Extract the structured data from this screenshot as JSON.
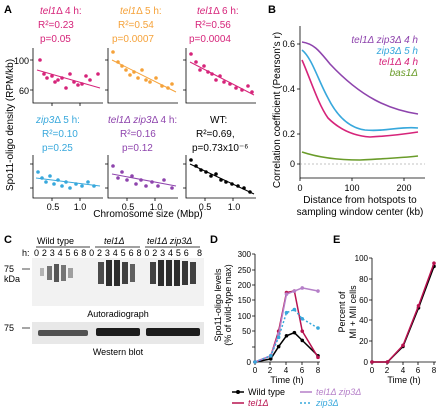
{
  "colors": {
    "magenta": "#d6247a",
    "orange": "#f5a23a",
    "cyan": "#38a8dc",
    "purple": "#8e44ad",
    "green": "#6a9c2a",
    "black": "#000000",
    "red": "#b8124f",
    "lightpurple": "#b57fc8"
  },
  "panels": {
    "A": {
      "letter": "A",
      "ylabel": "Spo11-oligo density (RPM/kb)",
      "xlabel": "Chromosome size (Mbp)",
      "yticks": [
        "100",
        "60"
      ],
      "xticks": [
        "0.5",
        "1.0"
      ],
      "subplots": [
        {
          "name": "tel1",
          "suffix": "Δ 4 h:",
          "r2": "R²=0.23",
          "p": "p=0.05",
          "color": "#d6247a"
        },
        {
          "name": "tel1",
          "suffix": "Δ 5 h:",
          "r2": "R²=0.54",
          "p": "p=0.0007",
          "color": "#f5a23a"
        },
        {
          "name": "tel1",
          "suffix": "Δ 6 h:",
          "r2": "R²=0.56",
          "p": "p=0.0004",
          "color": "#d6247a"
        },
        {
          "name": "zip3",
          "suffix": "Δ 5 h:",
          "r2": "R²=0.10",
          "p": "p=0.25",
          "color": "#38a8dc"
        },
        {
          "name": "tel1Δ zip3",
          "suffix": "Δ 4 h:",
          "r2": "R²=0.16",
          "p": "p=0.12",
          "color": "#8e44ad"
        },
        {
          "name": "WT:",
          "suffix": "",
          "r2": "R²=0.69,",
          "p": "p=0.73x10⁻⁶",
          "color": "#000000"
        }
      ]
    },
    "B": {
      "letter": "B",
      "ylabel": "Correlation coefficient (Pearson's r)",
      "xlabel1": "Distance from hotspots to",
      "xlabel2": "sampling window center (kb)",
      "yticks": [
        "0.6",
        "0.4",
        "0.2",
        "0"
      ],
      "xticks": [
        "0",
        "100",
        "200"
      ],
      "legend": [
        {
          "label": "tel1Δ zip3Δ 4 h",
          "color": "#8e44ad"
        },
        {
          "label": "zip3Δ 5 h",
          "color": "#38a8dc"
        },
        {
          "label": "tel1Δ 4 h",
          "color": "#d6247a"
        },
        {
          "label": "bas1Δ",
          "color": "#6a9c2a"
        }
      ]
    },
    "C": {
      "letter": "C",
      "groups": [
        "Wild type",
        "tel1Δ",
        "tel1Δ zip3Δ"
      ],
      "h_label": "h:",
      "lanes": "02345680234568023456 8",
      "markers": [
        "75",
        "kDa",
        "75"
      ],
      "autorad": "Autoradiograph",
      "western": "Western blot"
    },
    "D": {
      "letter": "D",
      "ylabel1": "Spo11-oligo levels",
      "ylabel2": "(% of wild-type max)",
      "xlabel": "Time (h)",
      "yticks": [
        "300",
        "250",
        "200",
        "150",
        "100",
        "50",
        "0"
      ],
      "xticks": [
        "0",
        "2",
        "4",
        "6",
        "8"
      ],
      "legend": [
        {
          "label": "Wild type",
          "color": "#000000"
        },
        {
          "label": "tel1Δ",
          "color": "#b8124f"
        },
        {
          "label": "tel1Δ zip3Δ",
          "color": "#b57fc8"
        },
        {
          "label": "zip3Δ",
          "color": "#38a8dc"
        }
      ]
    },
    "E": {
      "letter": "E",
      "ylabel1": "Percent of",
      "ylabel2": "MI + MII cells",
      "xlabel": "Time (h)",
      "yticks": [
        "100",
        "80",
        "60",
        "40",
        "20",
        "0"
      ],
      "xticks": [
        "0",
        "2",
        "4",
        "6",
        "8"
      ]
    }
  },
  "chart_data": [
    {
      "panel": "D",
      "type": "line",
      "x": [
        0,
        2,
        3,
        4,
        5,
        6,
        8
      ],
      "xlabel": "Time (h)",
      "ylabel": "Spo11-oligo levels (% of wild-type max)",
      "ylim": [
        0,
        350
      ],
      "series": [
        {
          "name": "Wild type",
          "values": [
            0,
            10,
            50,
            85,
            95,
            70,
            20
          ]
        },
        {
          "name": "tel1Δ",
          "values": [
            0,
            20,
            100,
            225,
            230,
            100,
            15
          ]
        },
        {
          "name": "tel1Δ zip3Δ",
          "values": [
            0,
            20,
            90,
            220,
            230,
            240,
            230
          ]
        },
        {
          "name": "zip3Δ",
          "values": [
            0,
            20,
            80,
            160,
            170,
            140,
            110
          ]
        }
      ]
    },
    {
      "panel": "E",
      "type": "line",
      "x": [
        0,
        2,
        4,
        6,
        8
      ],
      "xlabel": "Time (h)",
      "ylabel": "Percent of MI + MII cells",
      "ylim": [
        0,
        100
      ],
      "series": [
        {
          "name": "Wild type",
          "values": [
            0,
            0,
            15,
            52,
            92
          ]
        },
        {
          "name": "tel1Δ",
          "values": [
            0,
            0,
            16,
            54,
            95
          ]
        }
      ]
    },
    {
      "panel": "B",
      "type": "line",
      "xlabel": "Distance from hotspots to sampling window center (kb)",
      "ylabel": "Correlation coefficient (Pearson's r)",
      "series": [
        {
          "name": "tel1Δ zip3Δ 4 h",
          "values": [
            0.57,
            0.52,
            0.45,
            0.38,
            0.32,
            0.27,
            0.23
          ]
        },
        {
          "name": "zip3Δ 5 h",
          "values": [
            0.52,
            0.42,
            0.3,
            0.22,
            0.17,
            0.15,
            0.15
          ]
        },
        {
          "name": "tel1Δ 4 h",
          "values": [
            0.47,
            0.33,
            0.2,
            0.14,
            0.12,
            0.12,
            0.13
          ]
        },
        {
          "name": "bas1Δ",
          "values": [
            0.05,
            0.03,
            0.02,
            0.02,
            0.03,
            0.03,
            0.04
          ]
        }
      ]
    }
  ]
}
